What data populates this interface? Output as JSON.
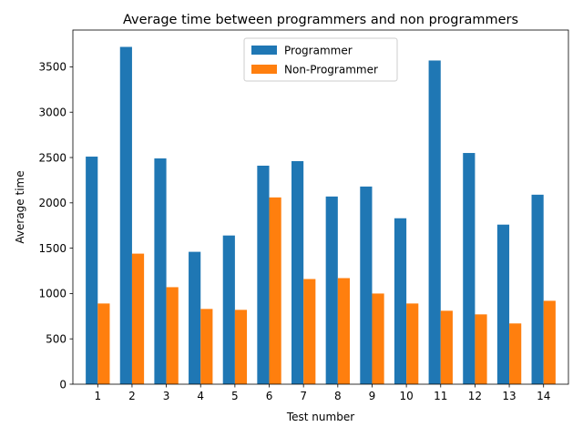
{
  "chart_data": {
    "type": "bar",
    "title": "Average time between programmers and non programmers",
    "xlabel": "Test number",
    "ylabel": "Average time",
    "categories": [
      "1",
      "2",
      "3",
      "4",
      "5",
      "6",
      "7",
      "8",
      "9",
      "10",
      "11",
      "12",
      "13",
      "14"
    ],
    "series": [
      {
        "name": "Programmer",
        "color": "#1f77b4",
        "values": [
          2510,
          3720,
          2490,
          1460,
          1640,
          2410,
          2460,
          2070,
          2180,
          1830,
          3570,
          2550,
          1760,
          2090
        ]
      },
      {
        "name": "Non-Programmer",
        "color": "#ff7f0e",
        "values": [
          890,
          1440,
          1070,
          830,
          820,
          2060,
          1160,
          1170,
          1000,
          890,
          810,
          770,
          670,
          920
        ]
      }
    ],
    "yticks": [
      0,
      500,
      1000,
      1500,
      2000,
      2500,
      3000,
      3500
    ],
    "ylim": [
      0,
      3906
    ],
    "legend_position": "upper center",
    "grid": false
  }
}
